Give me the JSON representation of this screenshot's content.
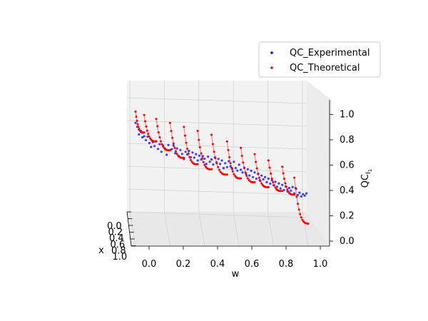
{
  "chart_data": {
    "type": "scatter",
    "projection": "3d",
    "title": "",
    "axes": {
      "x": {
        "label": "x",
        "range": [
          0.0,
          1.0
        ],
        "ticks": [
          "0.0",
          "0.2",
          "0.4",
          "0.6",
          "0.8",
          "1.0"
        ]
      },
      "w": {
        "label": "w",
        "range": [
          0.0,
          1.0
        ],
        "ticks": [
          "0.0",
          "0.2",
          "0.4",
          "0.6",
          "0.8",
          "1.0"
        ]
      },
      "z": {
        "label": "QC",
        "label_subscript": "I",
        "label_subsubscript": "1",
        "range": [
          0.0,
          1.0
        ],
        "ticks": [
          "0.0",
          "0.2",
          "0.4",
          "0.6",
          "0.8",
          "1.0"
        ]
      }
    },
    "grid": true,
    "legend": {
      "position": "upper-right"
    },
    "series": [
      {
        "name": "QC_Experimental",
        "color": "#0000ff",
        "marker": "dot",
        "points": [
          [
            0.0,
            0.73
          ],
          [
            0.01,
            0.7
          ],
          [
            0.02,
            0.68
          ],
          [
            0.02,
            0.64
          ],
          [
            0.03,
            0.67
          ],
          [
            0.04,
            0.66
          ],
          [
            0.04,
            0.62
          ],
          [
            0.05,
            0.63
          ],
          [
            0.06,
            0.6
          ],
          [
            0.07,
            0.63
          ],
          [
            0.08,
            0.58
          ],
          [
            0.09,
            0.55
          ],
          [
            0.1,
            0.59
          ],
          [
            0.11,
            0.56
          ],
          [
            0.12,
            0.6
          ],
          [
            0.13,
            0.54
          ],
          [
            0.14,
            0.58
          ],
          [
            0.15,
            0.52
          ],
          [
            0.16,
            0.57
          ],
          [
            0.17,
            0.55
          ],
          [
            0.18,
            0.5
          ],
          [
            0.19,
            0.58
          ],
          [
            0.2,
            0.54
          ],
          [
            0.21,
            0.55
          ],
          [
            0.22,
            0.58
          ],
          [
            0.23,
            0.52
          ],
          [
            0.24,
            0.56
          ],
          [
            0.25,
            0.5
          ],
          [
            0.26,
            0.55
          ],
          [
            0.27,
            0.52
          ],
          [
            0.28,
            0.48
          ],
          [
            0.29,
            0.54
          ],
          [
            0.3,
            0.52
          ],
          [
            0.31,
            0.55
          ],
          [
            0.32,
            0.5
          ],
          [
            0.33,
            0.54
          ],
          [
            0.34,
            0.5
          ],
          [
            0.35,
            0.53
          ],
          [
            0.36,
            0.48
          ],
          [
            0.37,
            0.52
          ],
          [
            0.38,
            0.49
          ],
          [
            0.39,
            0.52
          ],
          [
            0.4,
            0.5
          ],
          [
            0.41,
            0.46
          ],
          [
            0.42,
            0.52
          ],
          [
            0.43,
            0.48
          ],
          [
            0.44,
            0.5
          ],
          [
            0.45,
            0.46
          ],
          [
            0.46,
            0.52
          ],
          [
            0.47,
            0.48
          ],
          [
            0.48,
            0.51
          ],
          [
            0.49,
            0.47
          ],
          [
            0.5,
            0.5
          ],
          [
            0.51,
            0.44
          ],
          [
            0.52,
            0.48
          ],
          [
            0.53,
            0.45
          ],
          [
            0.54,
            0.5
          ],
          [
            0.55,
            0.46
          ],
          [
            0.56,
            0.44
          ],
          [
            0.57,
            0.5
          ],
          [
            0.58,
            0.45
          ],
          [
            0.59,
            0.43
          ],
          [
            0.6,
            0.48
          ],
          [
            0.61,
            0.44
          ],
          [
            0.62,
            0.42
          ],
          [
            0.63,
            0.46
          ],
          [
            0.64,
            0.41
          ],
          [
            0.65,
            0.45
          ],
          [
            0.66,
            0.4
          ],
          [
            0.67,
            0.44
          ],
          [
            0.68,
            0.39
          ],
          [
            0.69,
            0.43
          ],
          [
            0.7,
            0.38
          ],
          [
            0.71,
            0.42
          ],
          [
            0.72,
            0.37
          ],
          [
            0.73,
            0.41
          ],
          [
            0.74,
            0.38
          ],
          [
            0.75,
            0.4
          ],
          [
            0.76,
            0.36
          ],
          [
            0.77,
            0.39
          ],
          [
            0.78,
            0.35
          ],
          [
            0.79,
            0.38
          ],
          [
            0.8,
            0.34
          ],
          [
            0.81,
            0.37
          ],
          [
            0.82,
            0.33
          ],
          [
            0.83,
            0.36
          ],
          [
            0.84,
            0.32
          ],
          [
            0.85,
            0.35
          ],
          [
            0.86,
            0.31
          ],
          [
            0.87,
            0.34
          ],
          [
            0.88,
            0.3
          ],
          [
            0.89,
            0.33
          ],
          [
            0.9,
            0.31
          ],
          [
            0.91,
            0.34
          ],
          [
            0.92,
            0.29
          ],
          [
            0.93,
            0.33
          ],
          [
            0.94,
            0.28
          ],
          [
            0.95,
            0.3
          ],
          [
            0.96,
            0.27
          ],
          [
            0.97,
            0.29
          ],
          [
            0.98,
            0.28
          ],
          [
            0.99,
            0.3
          ]
        ]
      },
      {
        "name": "QC_Theoretical",
        "color": "#ff0000",
        "marker": "dot",
        "segments": [
          {
            "w": [
              0.0,
              0.05
            ],
            "peak": 0.82,
            "trough": 0.64
          },
          {
            "w": [
              0.05,
              0.12
            ],
            "peak": 0.8,
            "trough": 0.58
          },
          {
            "w": [
              0.12,
              0.2
            ],
            "peak": 0.78,
            "trough": 0.52
          },
          {
            "w": [
              0.2,
              0.28
            ],
            "peak": 0.76,
            "trough": 0.47
          },
          {
            "w": [
              0.28,
              0.36
            ],
            "peak": 0.74,
            "trough": 0.43
          },
          {
            "w": [
              0.36,
              0.44
            ],
            "peak": 0.72,
            "trough": 0.4
          },
          {
            "w": [
              0.44,
              0.53
            ],
            "peak": 0.7,
            "trough": 0.37
          },
          {
            "w": [
              0.53,
              0.61
            ],
            "peak": 0.66,
            "trough": 0.35
          },
          {
            "w": [
              0.61,
              0.69
            ],
            "peak": 0.62,
            "trough": 0.33
          },
          {
            "w": [
              0.69,
              0.77
            ],
            "peak": 0.58,
            "trough": 0.3
          },
          {
            "w": [
              0.77,
              0.85
            ],
            "peak": 0.54,
            "trough": 0.28
          },
          {
            "w": [
              0.85,
              0.92
            ],
            "peak": 0.5,
            "trough": 0.26
          },
          {
            "w": [
              0.92,
              1.0
            ],
            "peak": 0.42,
            "trough": 0.05
          }
        ]
      }
    ]
  }
}
